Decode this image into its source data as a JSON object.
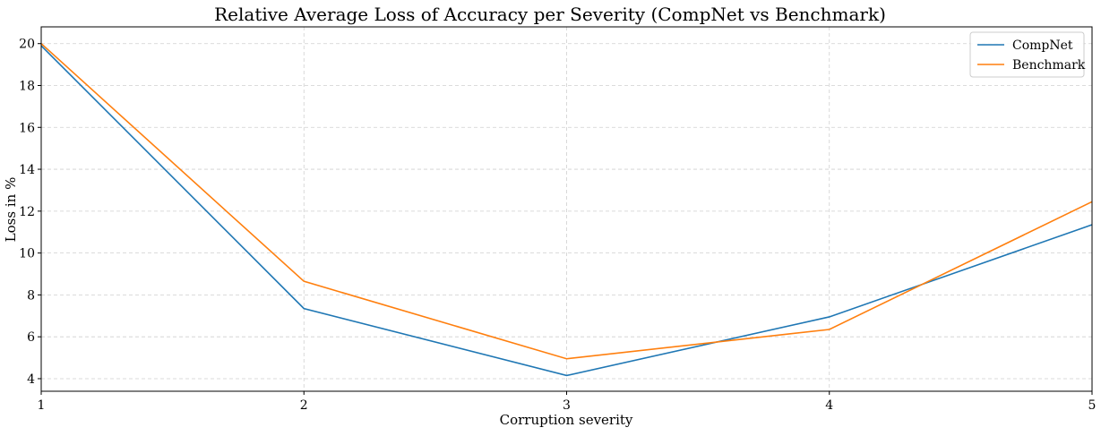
{
  "chart_data": {
    "type": "line",
    "title": "Relative Average Loss of Accuracy per Severity (CompNet vs Benchmark)",
    "xlabel": "Corruption severity",
    "ylabel": "Loss in %",
    "x": [
      1,
      2,
      3,
      4,
      5
    ],
    "xticks": [
      "1",
      "2",
      "3",
      "4",
      "5"
    ],
    "yticks": [
      "4",
      "6",
      "8",
      "10",
      "12",
      "14",
      "16",
      "18",
      "20"
    ],
    "xlim": [
      1,
      5
    ],
    "ylim": [
      3.4,
      20.8
    ],
    "grid": true,
    "legend_position": "top-right",
    "series": [
      {
        "name": "CompNet",
        "color": "#1f77b4",
        "values": [
          19.9,
          7.35,
          4.15,
          6.95,
          11.35
        ]
      },
      {
        "name": "Benchmark",
        "color": "#ff7f0e",
        "values": [
          20.0,
          8.65,
          4.95,
          6.35,
          12.45
        ]
      }
    ]
  }
}
